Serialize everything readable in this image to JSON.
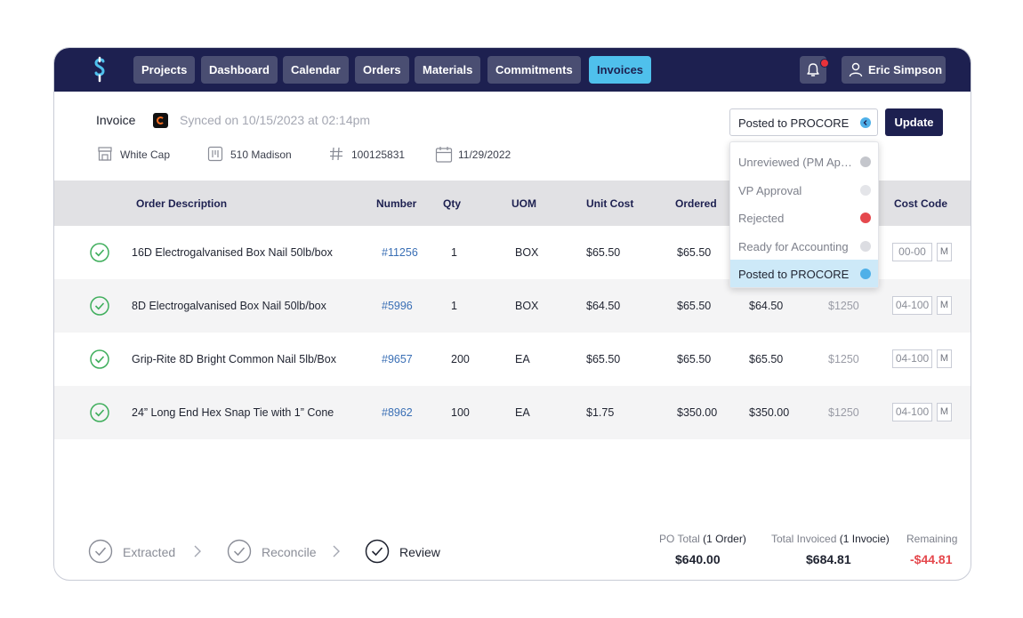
{
  "nav": {
    "items": [
      {
        "label": "Projects",
        "active": false
      },
      {
        "label": "Dashboard",
        "active": false
      },
      {
        "label": "Calendar",
        "active": false
      },
      {
        "label": "Orders",
        "active": false
      },
      {
        "label": "Materials",
        "active": false
      },
      {
        "label": "Commitments",
        "active": false
      },
      {
        "label": "Invoices",
        "active": true
      }
    ],
    "user_name": "Eric Simpson",
    "notification_dot": true
  },
  "header": {
    "title": "Invoice",
    "synced_text": "Synced on 10/15/2023 at 02:14pm",
    "vendor": "White Cap",
    "project": "510 Madison",
    "invoice_number": "100125831",
    "date": "11/29/2022",
    "status_value": "Posted to PROCORE",
    "update_label": "Update"
  },
  "status_dropdown": {
    "options": [
      {
        "label": "Unreviewed (PM Approval)",
        "color": "#c4c6cc",
        "selected": false
      },
      {
        "label": "VP Approval",
        "color": "#e4e5e9",
        "selected": false
      },
      {
        "label": "Rejected",
        "color": "#e5484d",
        "selected": false
      },
      {
        "label": "Ready for Accounting",
        "color": "#dcdde2",
        "selected": false
      },
      {
        "label": "Posted to PROCORE",
        "color": "#4fb0e8",
        "selected": true
      }
    ]
  },
  "table": {
    "columns": [
      "Order Description",
      "Number",
      "Qty",
      "UOM",
      "Unit Cost",
      "Ordered",
      "Cost Code"
    ],
    "rows": [
      {
        "description": "16D Electrogalvanised Box Nail 50lb/box",
        "number": "#11256",
        "qty": "1",
        "uom": "BOX",
        "unit_cost": "$65.50",
        "ordered": "$65.50",
        "invoiced": "",
        "total": "",
        "cost_code": "00-00",
        "flag": "M"
      },
      {
        "description": "8D Electrogalvanised Box Nail 50lb/box",
        "number": "#5996",
        "qty": "1",
        "uom": "BOX",
        "unit_cost": "$64.50",
        "ordered": "$65.50",
        "invoiced": "$64.50",
        "total": "$1250",
        "cost_code": "04-100",
        "flag": "M"
      },
      {
        "description": "Grip-Rite 8D Bright Common Nail 5lb/Box",
        "number": "#9657",
        "qty": "200",
        "uom": "EA",
        "unit_cost": "$65.50",
        "ordered": "$65.50",
        "invoiced": "$65.50",
        "total": "$1250",
        "cost_code": "04-100",
        "flag": "M"
      },
      {
        "description": "24” Long End Hex Snap Tie with 1” Cone",
        "number": "#8962",
        "qty": "100",
        "uom": "EA",
        "unit_cost": "$1.75",
        "ordered": "$350.00",
        "invoiced": "$350.00",
        "total": "$1250",
        "cost_code": "04-100",
        "flag": "M"
      }
    ]
  },
  "steps": [
    {
      "label": "Extracted",
      "done": true
    },
    {
      "label": "Reconcile",
      "done": true
    },
    {
      "label": "Review",
      "current": true
    }
  ],
  "totals": {
    "po_label": "PO Total",
    "po_sub": "(1 Order)",
    "po_value": "$640.00",
    "invoiced_label": "Total Invoiced",
    "invoiced_sub": "(1 Invocie)",
    "invoiced_value": "$684.81",
    "remaining_label": "Remaining",
    "remaining_value": "-$44.81"
  },
  "colors": {
    "nav_bg": "#1d2050",
    "nav_active": "#4fc0ec",
    "check_green": "#3fae5c",
    "link": "#3a6fb5",
    "negative": "#e5484d"
  }
}
